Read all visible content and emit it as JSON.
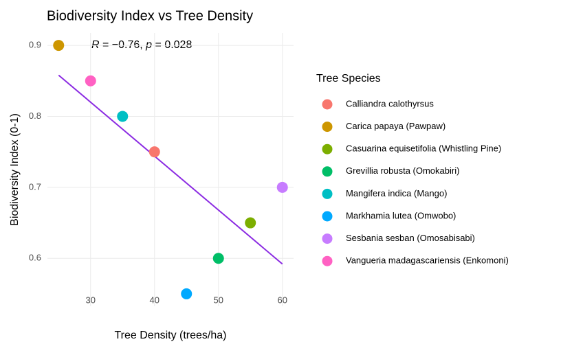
{
  "chart_data": {
    "type": "scatter",
    "title": "Biodiversity Index vs Tree Density",
    "x_label": "Tree Density (trees/ha)",
    "y_label": "Biodiversity Index (0-1)",
    "legend_title": "Tree Species",
    "legend_position": "right",
    "grid": true,
    "xlim": [
      23.25,
      61.75
    ],
    "ylim": [
      0.5325,
      0.9175
    ],
    "xticks": [
      30,
      40,
      50,
      60
    ],
    "yticks": [
      0.6,
      0.7,
      0.8,
      0.9
    ],
    "annotation": [
      {
        "text": "R",
        "italic": true
      },
      {
        "text": " = −0.76, ",
        "italic": false
      },
      {
        "text": "p",
        "italic": true
      },
      {
        "text": " = 0.028",
        "italic": false
      }
    ],
    "trend_line": {
      "x": [
        25,
        60
      ],
      "y": [
        0.858,
        0.592
      ],
      "color": "#8B2BE2"
    },
    "series": [
      {
        "name": "Calliandra calothyrsus",
        "color": "#F8766D",
        "x": [
          40
        ],
        "values": [
          0.75
        ]
      },
      {
        "name": "Carica papaya (Pawpaw)",
        "color": "#CD9600",
        "x": [
          25
        ],
        "values": [
          0.9
        ]
      },
      {
        "name": "Casuarina equisetifolia (Whistling Pine)",
        "color": "#7CAE00",
        "x": [
          55
        ],
        "values": [
          0.65
        ]
      },
      {
        "name": "Grevillia robusta (Omokabiri)",
        "color": "#00BE67",
        "x": [
          50
        ],
        "values": [
          0.6
        ]
      },
      {
        "name": "Mangifera indica (Mango)",
        "color": "#00BFC4",
        "x": [
          35
        ],
        "values": [
          0.8
        ]
      },
      {
        "name": "Markhamia lutea (Omwobo)",
        "color": "#00A9FF",
        "x": [
          45
        ],
        "values": [
          0.55
        ]
      },
      {
        "name": "Sesbania sesban (Omosabisabi)",
        "color": "#C77CFF",
        "x": [
          60
        ],
        "values": [
          0.7
        ]
      },
      {
        "name": "Vangueria madagascariensis (Enkomoni)",
        "color": "#FF61C3",
        "x": [
          30
        ],
        "values": [
          0.85
        ]
      }
    ]
  }
}
